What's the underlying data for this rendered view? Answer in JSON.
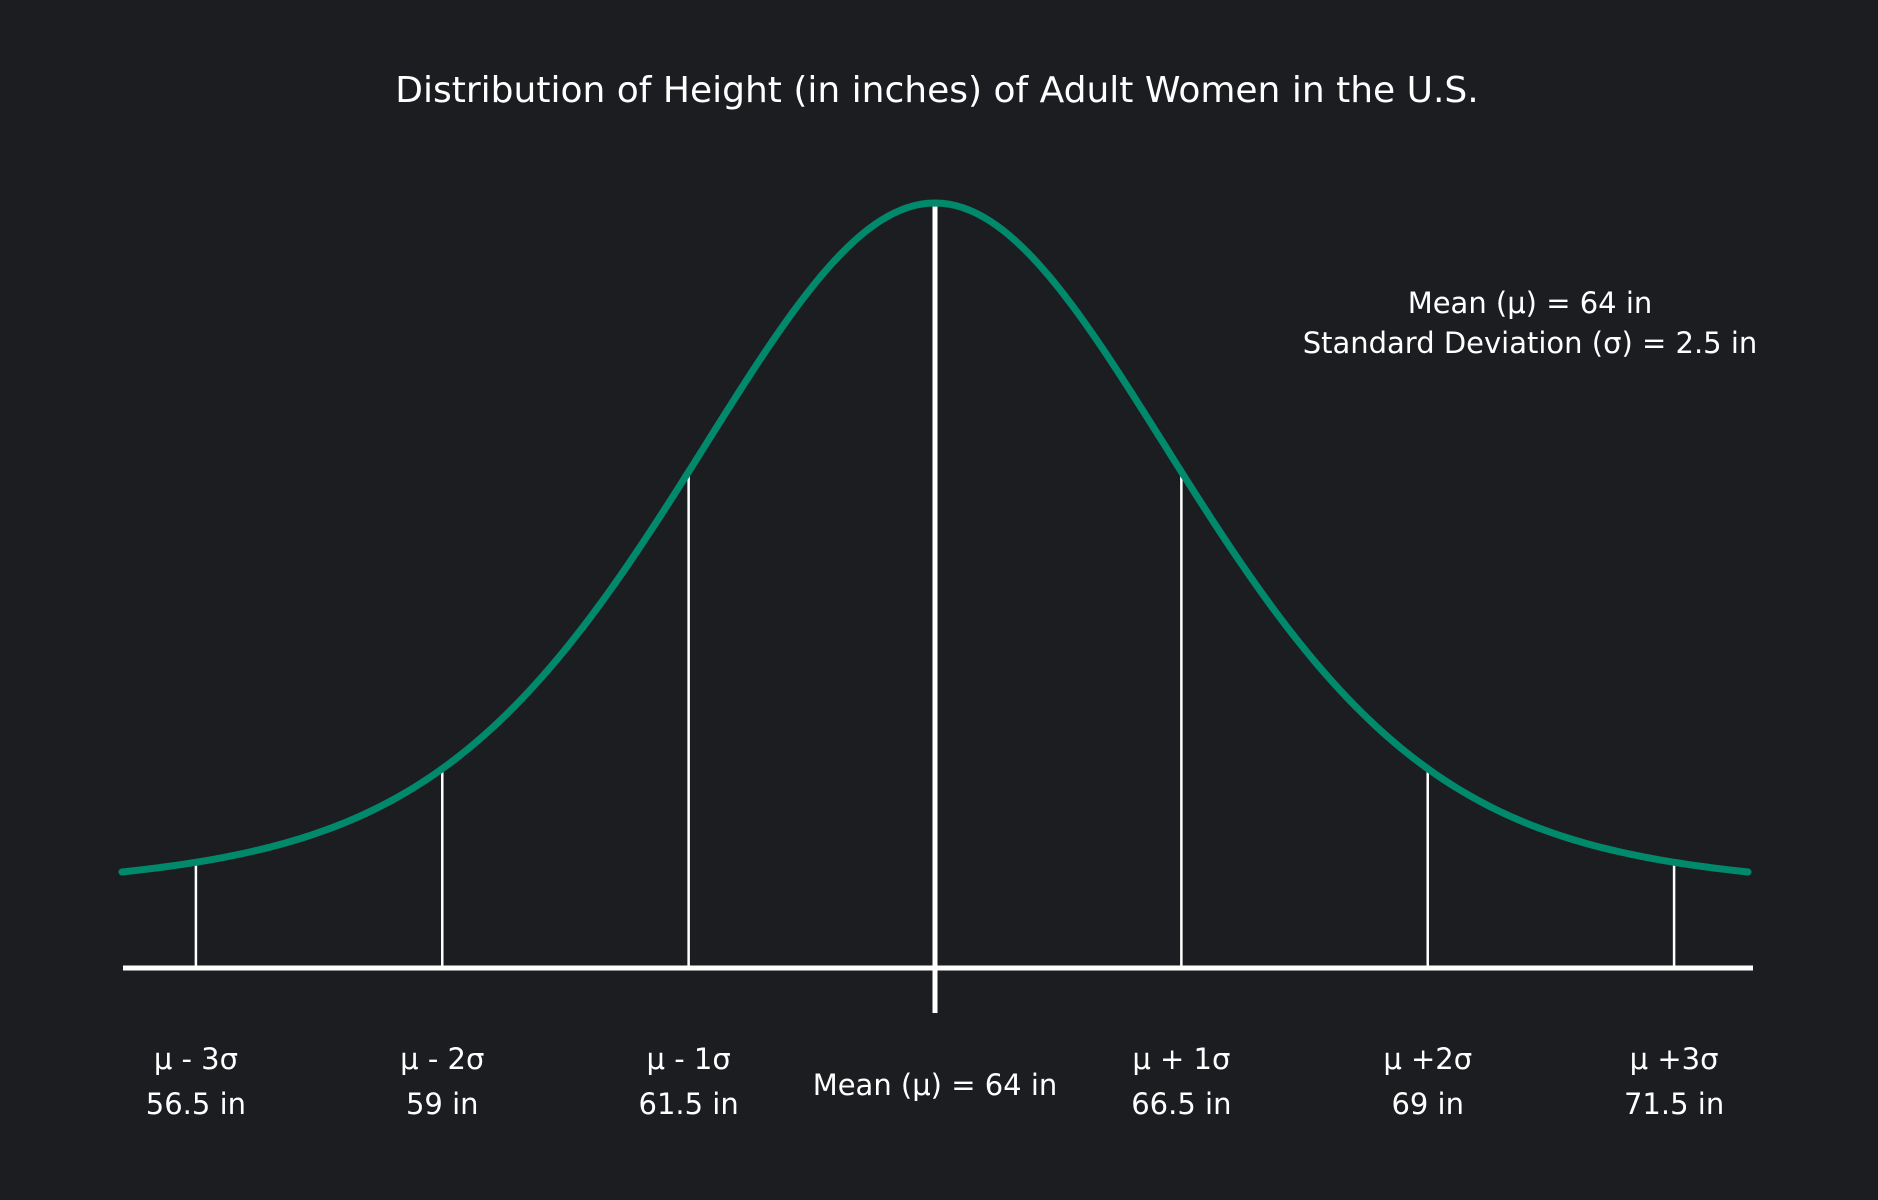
{
  "chart_data": {
    "type": "line",
    "title": "Distribution of Height (in inches) of Adult Women in the U.S.",
    "mean": 64,
    "sd": 2.5,
    "x_range": [
      55.75,
      72.25
    ],
    "stats": {
      "mean_line": "Mean (μ) = 64 in",
      "sd_line": "Standard Deviation (σ) = 2.5 in"
    },
    "mean_label": "Mean (μ) = 64 in",
    "ticks": [
      {
        "x": 56.5,
        "symbol": "μ - 3σ",
        "value": "56.5 in"
      },
      {
        "x": 59,
        "symbol": "μ - 2σ",
        "value": "59 in"
      },
      {
        "x": 61.5,
        "symbol": "μ - 1σ",
        "value": "61.5 in"
      },
      {
        "x": 66.5,
        "symbol": "μ + 1σ",
        "value": "66.5 in"
      },
      {
        "x": 69,
        "symbol": "μ +2σ",
        "value": "69 in"
      },
      {
        "x": 71.5,
        "symbol": "μ +3σ",
        "value": "71.5 in"
      }
    ],
    "grid": false,
    "legend": "none"
  },
  "colors": {
    "background": "#1c1d20",
    "curve": "#00896b",
    "axis": "#ffffff",
    "text": "#ffffff"
  }
}
